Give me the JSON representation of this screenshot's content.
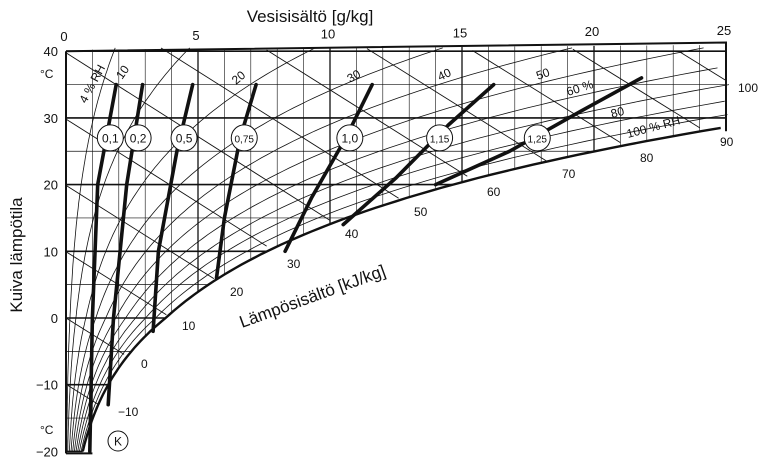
{
  "chart_data": {
    "type": "line",
    "title": "",
    "xlabel": "Vesisisältö [g/kg]",
    "ylabel": "Kuiva lämpötila",
    "x_unit_label": "°C",
    "y_unit_label_bottom": "°C",
    "enthalpy_label": "Lämpösisältö [kJ/kg]",
    "xlim": [
      0,
      25
    ],
    "ylim": [
      -20,
      40
    ],
    "x_ticks": [
      "0",
      "5",
      "10",
      "15",
      "20",
      "25"
    ],
    "y_ticks": [
      "40",
      "30",
      "20",
      "10",
      "0",
      "−10",
      "−20"
    ],
    "rh_labels": [
      "4 % RH",
      "10",
      "20",
      "30",
      "40",
      "50",
      "60 %",
      "80",
      "100 % RH",
      "90",
      "80",
      "70"
    ],
    "rh_curves": [
      {
        "rh": 0.04,
        "label": "4 % RH"
      },
      {
        "rh": 0.1,
        "label": "10"
      },
      {
        "rh": 0.2,
        "label": "20"
      },
      {
        "rh": 0.3,
        "label": "30"
      },
      {
        "rh": 0.4,
        "label": "40"
      },
      {
        "rh": 0.5,
        "label": "50"
      },
      {
        "rh": 0.6,
        "label": "60 %"
      },
      {
        "rh": 0.7,
        "label": "70"
      },
      {
        "rh": 0.8,
        "label": "80"
      },
      {
        "rh": 0.9,
        "label": "90"
      },
      {
        "rh": 1.0,
        "label": "100 % RH"
      }
    ],
    "enthalpy_lines": [
      "−10",
      "0",
      "10",
      "20",
      "30",
      "40",
      "50",
      "60",
      "70",
      "80",
      "90",
      "100"
    ],
    "shr_curves": [
      {
        "label": "0,1",
        "points": [
          [
            0.9,
            -20
          ],
          [
            1.0,
            0
          ],
          [
            1.2,
            20
          ],
          [
            1.9,
            35
          ]
        ]
      },
      {
        "label": "0,2",
        "points": [
          [
            1.6,
            -13
          ],
          [
            1.8,
            0
          ],
          [
            2.3,
            20
          ],
          [
            2.9,
            35
          ]
        ]
      },
      {
        "label": "0,5",
        "points": [
          [
            3.3,
            -2
          ],
          [
            3.5,
            10
          ],
          [
            4.2,
            25
          ],
          [
            4.8,
            35
          ]
        ]
      },
      {
        "label": "0,75",
        "points": [
          [
            5.7,
            6
          ],
          [
            6.0,
            15
          ],
          [
            6.6,
            27
          ],
          [
            7.2,
            35
          ]
        ]
      },
      {
        "label": "1,0",
        "points": [
          [
            8.3,
            10
          ],
          [
            9.3,
            18
          ],
          [
            10.6,
            27
          ],
          [
            11.6,
            35
          ]
        ]
      },
      {
        "label": "1,15",
        "points": [
          [
            10.5,
            14
          ],
          [
            12.5,
            21
          ],
          [
            14.5,
            29
          ],
          [
            16.2,
            35
          ]
        ]
      },
      {
        "label": "1,25",
        "points": [
          [
            14.0,
            20
          ],
          [
            16.8,
            25
          ],
          [
            19.5,
            31
          ],
          [
            21.8,
            36
          ]
        ]
      }
    ],
    "point_label": "K",
    "grid": true
  }
}
